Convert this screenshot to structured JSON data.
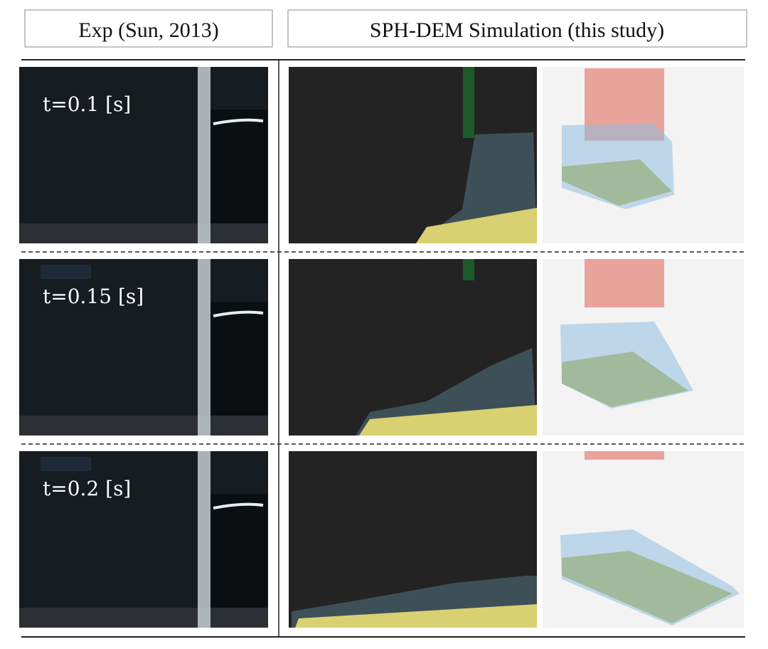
{
  "headers": [
    "Exp (Sun, 2013)",
    "SPH-DEM Simulation (this study)"
  ],
  "rows": [
    {
      "label": "t=0.1 [s]"
    },
    {
      "label": "t=0.15 [s]"
    },
    {
      "label": "t=0.2 [s]"
    }
  ]
}
